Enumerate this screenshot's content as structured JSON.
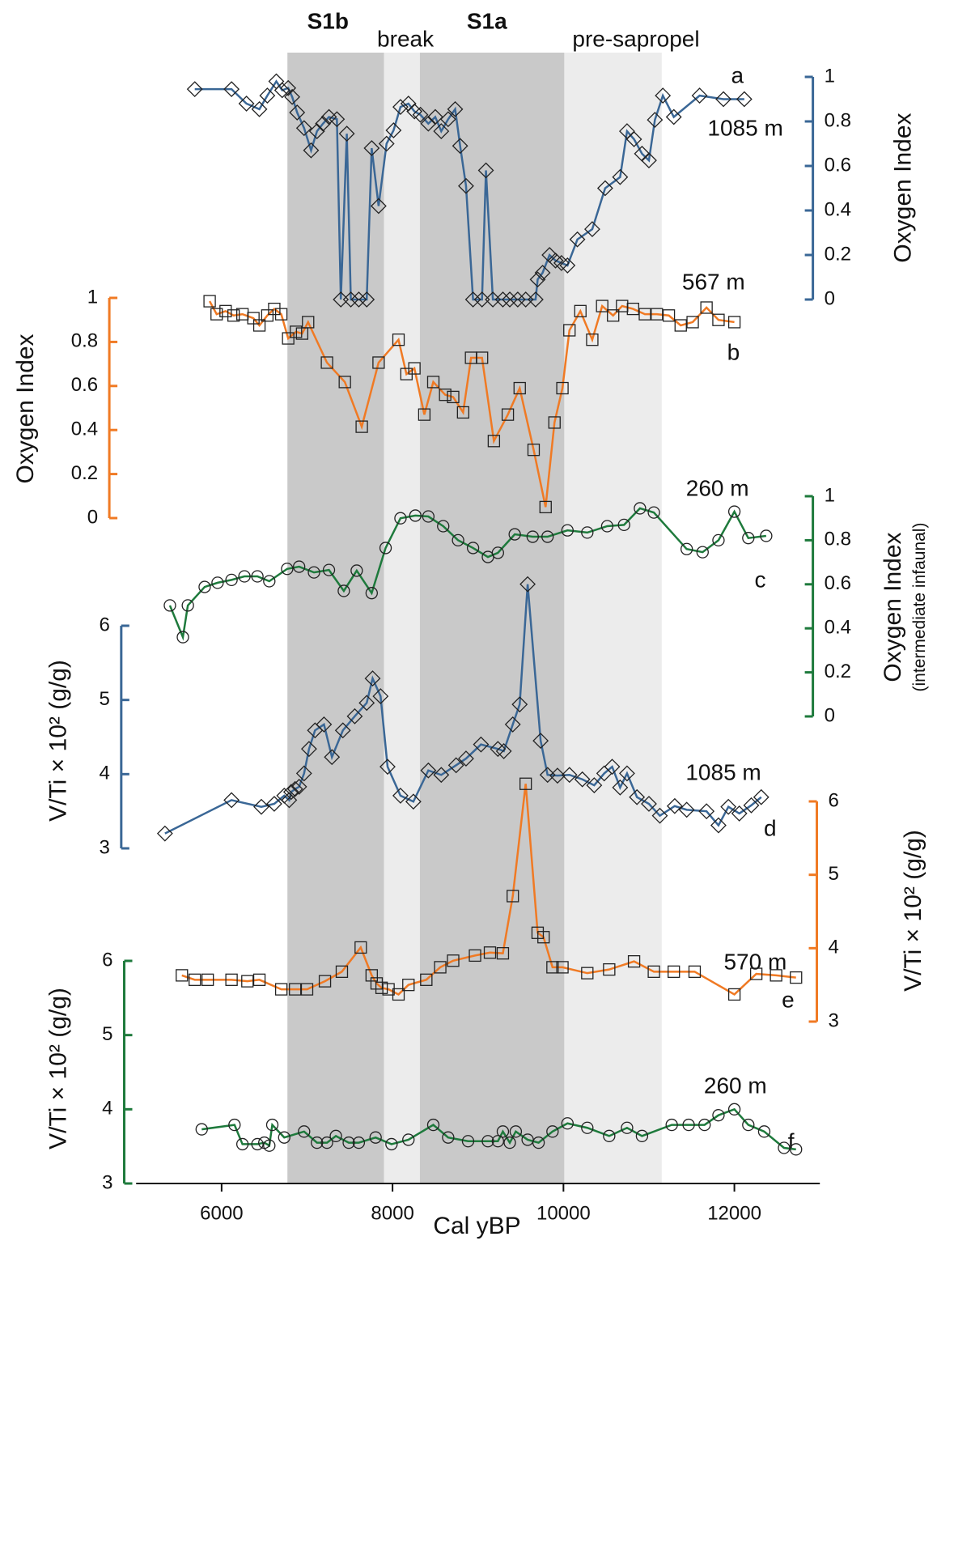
{
  "chart_data": {
    "type": "line",
    "xlabel": "Cal yBP",
    "xlim": [
      5000,
      13000
    ],
    "xticks": [
      6000,
      8000,
      10000,
      12000
    ],
    "bands": [
      {
        "label": "S1b",
        "start": 6770,
        "end": 7900,
        "color": "#c9c9c9",
        "bold": true
      },
      {
        "label": "break",
        "start": 7900,
        "end": 8320,
        "color": "#ececec",
        "bold": false
      },
      {
        "label": "S1a",
        "start": 8320,
        "end": 10010,
        "color": "#c9c9c9",
        "bold": true
      },
      {
        "label": "pre-sapropel",
        "start": 10010,
        "end": 11150,
        "color": "#ececec",
        "bold": false
      }
    ],
    "panels": [
      {
        "label": "a",
        "depth": "1085 m",
        "ylabel": "Oxygen Index",
        "y_axis_side": "right",
        "ylim": [
          0,
          1
        ],
        "yticks": [
          0,
          0.2,
          0.4,
          0.6,
          0.8,
          1
        ],
        "series": [
          {
            "color": "#3a6796",
            "marker": "diamond",
            "x": [
              5686,
              6116,
              6291,
              6442,
              6535,
              6640,
              6709,
              6779,
              6826,
              6884,
              6965,
              7047,
              7116,
              7186,
              7256,
              7349,
              7395,
              7465,
              7512,
              7605,
              7698,
              7756,
              7837,
              7930,
              8012,
              8093,
              8186,
              8256,
              8326,
              8419,
              8500,
              8570,
              8651,
              8733,
              8791,
              8860,
              8942,
              9047,
              9093,
              9174,
              9291,
              9372,
              9465,
              9558,
              9674,
              9698,
              9756,
              9837,
              9907,
              9977,
              10047,
              10163,
              10337,
              10488,
              10663,
              10744,
              10826,
              10919,
              11000,
              11070,
              11163,
              11291,
              11593,
              11872,
              12116
            ],
            "values": [
              0.945,
              0.945,
              0.88,
              0.855,
              0.916,
              0.98,
              0.94,
              0.95,
              0.91,
              0.84,
              0.77,
              0.67,
              0.756,
              0.79,
              0.82,
              0.81,
              0,
              0.745,
              0,
              0,
              0,
              0.68,
              0.42,
              0.7,
              0.76,
              0.865,
              0.88,
              0.845,
              0.83,
              0.79,
              0.82,
              0.756,
              0.81,
              0.855,
              0.69,
              0.51,
              0,
              0,
              0.58,
              0,
              0,
              0,
              0,
              0,
              0,
              0.09,
              0.12,
              0.2,
              0.175,
              0.164,
              0.153,
              0.27,
              0.316,
              0.5,
              0.55,
              0.756,
              0.72,
              0.655,
              0.625,
              0.807,
              0.916,
              0.82,
              0.916,
              0.9,
              0.9
            ]
          }
        ]
      },
      {
        "label": "b",
        "depth": "567 m",
        "ylabel": "Oxygen Index",
        "y_axis_side": "left",
        "ylim": [
          0,
          1
        ],
        "yticks": [
          0,
          0.2,
          0.4,
          0.6,
          0.8,
          1
        ],
        "series": [
          {
            "color": "#f07a24",
            "marker": "square",
            "x": [
              5860,
              5942,
              6047,
              6140,
              6244,
              6372,
              6442,
              6535,
              6616,
              6698,
              6779,
              6870,
              6942,
              7012,
              7233,
              7442,
              7640,
              7837,
              8070,
              8163,
              8256,
              8372,
              8477,
              8616,
              8709,
              8826,
              8919,
              9047,
              9186,
              9349,
              9488,
              9651,
              9791,
              9895,
              9988,
              10070,
              10198,
              10337,
              10453,
              10581,
              10686,
              10814,
              10953,
              11093,
              11233,
              11372,
              11512,
              11674,
              11814,
              12000
            ],
            "values": [
              0.985,
              0.926,
              0.94,
              0.92,
              0.926,
              0.908,
              0.875,
              0.92,
              0.95,
              0.926,
              0.816,
              0.846,
              0.838,
              0.89,
              0.706,
              0.618,
              0.415,
              0.706,
              0.81,
              0.654,
              0.68,
              0.47,
              0.618,
              0.56,
              0.55,
              0.48,
              0.728,
              0.728,
              0.35,
              0.47,
              0.59,
              0.31,
              0.05,
              0.434,
              0.59,
              0.853,
              0.94,
              0.81,
              0.963,
              0.92,
              0.963,
              0.95,
              0.926,
              0.926,
              0.92,
              0.875,
              0.89,
              0.956,
              0.9,
              0.89
            ]
          }
        ]
      },
      {
        "label": "c",
        "depth": "260 m",
        "ylabel": "Oxygen Index",
        "ylabel_note": "(intermediate infaunal)",
        "y_axis_side": "right",
        "ylim": [
          0,
          1
        ],
        "yticks": [
          0,
          0.2,
          0.4,
          0.6,
          0.8,
          1
        ],
        "series": [
          {
            "color": "#1e7a3c",
            "marker": "circle",
            "x": [
              5395,
              5547,
              5605,
              5802,
              5953,
              6116,
              6267,
              6419,
              6558,
              6767,
              6907,
              7081,
              7256,
              7430,
              7581,
              7756,
              7919,
              8093,
              8267,
              8419,
              8593,
              8767,
              8942,
              9116,
              9233,
              9430,
              9640,
              9814,
              10047,
              10279,
              10512,
              10709,
              10895,
              11058,
              11442,
              11628,
              11814,
              12000,
              12163,
              12372
            ],
            "values": [
              0.504,
              0.36,
              0.504,
              0.588,
              0.607,
              0.62,
              0.636,
              0.636,
              0.614,
              0.67,
              0.68,
              0.654,
              0.665,
              0.57,
              0.662,
              0.56,
              0.765,
              0.9,
              0.912,
              0.908,
              0.864,
              0.8,
              0.765,
              0.724,
              0.743,
              0.827,
              0.816,
              0.816,
              0.845,
              0.835,
              0.864,
              0.87,
              0.945,
              0.926,
              0.76,
              0.746,
              0.8,
              0.93,
              0.81,
              0.82
            ]
          }
        ]
      },
      {
        "label": "d",
        "depth": "1085 m",
        "ylabel": "V/Ti × 10² (g/g)",
        "y_axis_side": "left",
        "ylim": [
          3,
          6
        ],
        "yticks": [
          3,
          4,
          5,
          6
        ],
        "series": [
          {
            "color": "#3a6796",
            "marker": "diamond",
            "x": [
              5337,
              6116,
              6465,
              6616,
              6733,
              6791,
              6814,
              6860,
              6907,
              6965,
              7023,
              7093,
              7198,
              7291,
              7419,
              7558,
              7698,
              7767,
              7860,
              7942,
              8093,
              8244,
              8419,
              8570,
              8744,
              8860,
              9035,
              9233,
              9302,
              9407,
              9488,
              9581,
              9733,
              9814,
              9930,
              10070,
              10221,
              10360,
              10477,
              10570,
              10663,
              10744,
              10860,
              11000,
              11128,
              11302,
              11442,
              11674,
              11814,
              11930,
              12058,
              12198,
              12314
            ],
            "values": [
              3.2,
              3.65,
              3.56,
              3.6,
              3.71,
              3.65,
              3.76,
              3.8,
              3.83,
              4.01,
              4.34,
              4.59,
              4.67,
              4.23,
              4.59,
              4.78,
              4.96,
              5.29,
              5.05,
              4.1,
              3.71,
              3.63,
              4.05,
              3.99,
              4.12,
              4.21,
              4.4,
              4.34,
              4.31,
              4.67,
              4.94,
              6.56,
              4.45,
              3.99,
              3.98,
              3.99,
              3.93,
              3.85,
              4.01,
              4.1,
              3.82,
              4.01,
              3.69,
              3.6,
              3.44,
              3.57,
              3.52,
              3.5,
              3.31,
              3.56,
              3.47,
              3.58,
              3.69
            ]
          }
        ]
      },
      {
        "label": "e",
        "depth": "570 m",
        "ylabel": "V/Ti × 10² (g/g)",
        "y_axis_side": "right",
        "ylim": [
          3,
          6
        ],
        "yticks": [
          3,
          4,
          5,
          6
        ],
        "series": [
          {
            "color": "#f07a24",
            "marker": "square",
            "x": [
              5535,
              5686,
              5837,
              6116,
              6302,
              6442,
              6698,
              6860,
              7000,
              7209,
              7407,
              7628,
              7756,
              7814,
              7872,
              7953,
              8070,
              8186,
              8395,
              8558,
              8709,
              8965,
              9140,
              9291,
              9407,
              9558,
              9698,
              9767,
              9872,
              9988,
              10279,
              10535,
              10826,
              11058,
              11291,
              11535,
              12000,
              12256,
              12488,
              12721
            ],
            "values": [
              3.63,
              3.57,
              3.57,
              3.57,
              3.55,
              3.57,
              3.44,
              3.44,
              3.44,
              3.55,
              3.68,
              4.01,
              3.63,
              3.52,
              3.46,
              3.44,
              3.37,
              3.5,
              3.57,
              3.74,
              3.83,
              3.9,
              3.94,
              3.93,
              4.71,
              6.24,
              4.21,
              4.15,
              3.74,
              3.74,
              3.66,
              3.71,
              3.82,
              3.68,
              3.68,
              3.68,
              3.37,
              3.65,
              3.63,
              3.6
            ]
          }
        ]
      },
      {
        "label": "f",
        "depth": "260 m",
        "ylabel": "V/Ti × 10² (g/g)",
        "y_axis_side": "left",
        "ylim": [
          3,
          6
        ],
        "yticks": [
          3,
          4,
          5,
          6
        ],
        "series": [
          {
            "color": "#1e7a3c",
            "marker": "circle",
            "x": [
              5767,
              6151,
              6244,
              6419,
              6500,
              6558,
              6593,
              6733,
              6965,
              7116,
              7233,
              7337,
              7488,
              7605,
              7802,
              7988,
              8186,
              8477,
              8651,
              8884,
              9116,
              9233,
              9291,
              9372,
              9442,
              9581,
              9709,
              9872,
              10047,
              10279,
              10535,
              10744,
              10919,
              11267,
              11465,
              11651,
              11814,
              12000,
              12163,
              12349,
              12581,
              12721
            ],
            "values": [
              3.73,
              3.79,
              3.53,
              3.53,
              3.55,
              3.51,
              3.79,
              3.62,
              3.7,
              3.55,
              3.55,
              3.64,
              3.55,
              3.55,
              3.62,
              3.53,
              3.59,
              3.79,
              3.62,
              3.57,
              3.57,
              3.57,
              3.7,
              3.55,
              3.7,
              3.59,
              3.55,
              3.7,
              3.81,
              3.75,
              3.64,
              3.75,
              3.64,
              3.79,
              3.79,
              3.79,
              3.92,
              4.0,
              3.79,
              3.7,
              3.48,
              3.46
            ]
          }
        ]
      }
    ]
  }
}
